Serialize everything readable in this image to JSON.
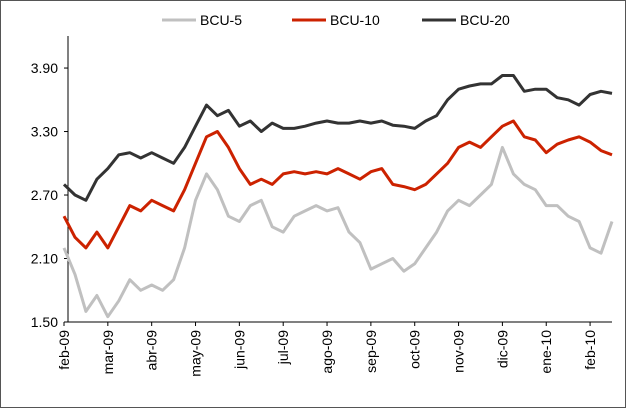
{
  "chart_data": {
    "type": "line",
    "categories": [
      "feb-09",
      null,
      null,
      null,
      "mar-09",
      null,
      null,
      null,
      "abr-09",
      null,
      null,
      null,
      "may-09",
      null,
      null,
      null,
      "jun-09",
      null,
      null,
      null,
      "jul-09",
      null,
      null,
      null,
      "ago-09",
      null,
      null,
      null,
      "sep-09",
      null,
      null,
      null,
      "oct-09",
      null,
      null,
      null,
      "nov-09",
      null,
      null,
      null,
      "dic-09",
      null,
      null,
      null,
      "ene-10",
      null,
      null,
      null,
      "feb-10",
      null,
      null
    ],
    "series": [
      {
        "name": "BCU-5",
        "color": "#c0c0c0",
        "values": [
          2.2,
          1.95,
          1.6,
          1.75,
          1.55,
          1.7,
          1.9,
          1.8,
          1.85,
          1.8,
          1.9,
          2.2,
          2.65,
          2.9,
          2.75,
          2.5,
          2.45,
          2.6,
          2.65,
          2.4,
          2.35,
          2.5,
          2.55,
          2.6,
          2.55,
          2.58,
          2.35,
          2.25,
          2.0,
          2.05,
          2.1,
          1.98,
          2.05,
          2.2,
          2.35,
          2.55,
          2.65,
          2.6,
          2.7,
          2.8,
          3.15,
          2.9,
          2.8,
          2.75,
          2.6,
          2.6,
          2.5,
          2.45,
          2.2,
          2.15,
          2.45
        ]
      },
      {
        "name": "BCU-10",
        "color": "#cc2200",
        "values": [
          2.5,
          2.3,
          2.2,
          2.35,
          2.2,
          2.4,
          2.6,
          2.55,
          2.65,
          2.6,
          2.55,
          2.75,
          3.0,
          3.25,
          3.3,
          3.15,
          2.95,
          2.8,
          2.85,
          2.8,
          2.9,
          2.92,
          2.9,
          2.92,
          2.9,
          2.95,
          2.9,
          2.85,
          2.92,
          2.95,
          2.8,
          2.78,
          2.75,
          2.8,
          2.9,
          3.0,
          3.15,
          3.2,
          3.15,
          3.25,
          3.35,
          3.4,
          3.25,
          3.22,
          3.1,
          3.18,
          3.22,
          3.25,
          3.2,
          3.12,
          3.08
        ]
      },
      {
        "name": "BCU-20",
        "color": "#333333",
        "values": [
          2.8,
          2.7,
          2.65,
          2.85,
          2.95,
          3.08,
          3.1,
          3.05,
          3.1,
          3.05,
          3.0,
          3.15,
          3.35,
          3.55,
          3.45,
          3.5,
          3.35,
          3.4,
          3.3,
          3.38,
          3.33,
          3.33,
          3.35,
          3.38,
          3.4,
          3.38,
          3.38,
          3.4,
          3.38,
          3.4,
          3.36,
          3.35,
          3.33,
          3.4,
          3.45,
          3.6,
          3.7,
          3.73,
          3.75,
          3.75,
          3.83,
          3.83,
          3.68,
          3.7,
          3.7,
          3.62,
          3.6,
          3.55,
          3.65,
          3.68,
          3.66
        ]
      }
    ],
    "ylim": [
      1.5,
      4.2
    ],
    "yticks": [
      {
        "value": 1.5,
        "label": "1.50"
      },
      {
        "value": 2.1,
        "label": "2.10"
      },
      {
        "value": 2.7,
        "label": "2.70"
      },
      {
        "value": 3.3,
        "label": "3.30"
      },
      {
        "value": 3.9,
        "label": "3.90"
      }
    ],
    "grid": false,
    "legend": "top"
  }
}
